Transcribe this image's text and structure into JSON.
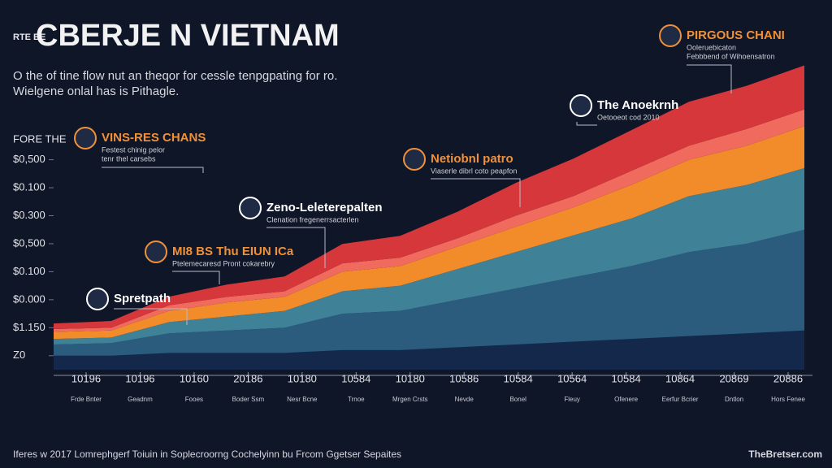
{
  "chart_data": {
    "type": "stacked-area",
    "logo": "RTE BE",
    "title": "CBERJE N VIETNAM",
    "subtitle": [
      "O the of tine flow nut an theqor for cessle tenpgpating for ro.",
      "Wielgene onlal has is Pithagle."
    ],
    "ylabel": "FORE THE",
    "categories": [
      "10196",
      "10196",
      "10160",
      "20186",
      "10180",
      "10584",
      "10180",
      "10586",
      "10584",
      "10564",
      "10584",
      "10864",
      "20869",
      "20886"
    ],
    "x_notes": [
      "Frde Bnter",
      "Geadnm",
      "Fooes",
      "Boder Ssm",
      "Nesr Bcne",
      "Trnoe",
      "Mrgen Crsts",
      "Nevde",
      "Bonel",
      "Fleuy",
      "Ofenere",
      "Eerfur Bcrier",
      "Dntlon",
      "Hors Fenee"
    ],
    "ylim": [
      0,
      11
    ],
    "yticks": [
      {
        "value": 0.5,
        "label": "Z0"
      },
      {
        "value": 1.5,
        "label": "$1.150"
      },
      {
        "value": 2.5,
        "label": "$0.000"
      },
      {
        "value": 3.5,
        "label": "$0.100"
      },
      {
        "value": 4.5,
        "label": "$0,500"
      },
      {
        "value": 5.5,
        "label": "$0.300"
      },
      {
        "value": 6.5,
        "label": "$0.100"
      },
      {
        "value": 7.5,
        "label": "$0,500"
      }
    ],
    "series": [
      {
        "color": "#13284a",
        "values": [
          0.5,
          0.5,
          0.6,
          0.6,
          0.6,
          0.7,
          0.7,
          0.8,
          0.9,
          1.0,
          1.1,
          1.2,
          1.3,
          1.4
        ]
      },
      {
        "color": "#2b5c7e",
        "values": [
          0.4,
          0.45,
          0.7,
          0.8,
          0.9,
          1.3,
          1.4,
          1.7,
          2.0,
          2.3,
          2.6,
          3.0,
          3.2,
          3.6
        ]
      },
      {
        "color": "#3f8197",
        "values": [
          0.2,
          0.2,
          0.4,
          0.5,
          0.6,
          0.8,
          0.9,
          1.1,
          1.3,
          1.5,
          1.7,
          2.0,
          2.1,
          2.2
        ]
      },
      {
        "color": "#f28c2a",
        "values": [
          0.25,
          0.25,
          0.4,
          0.5,
          0.5,
          0.7,
          0.7,
          0.8,
          0.9,
          1.0,
          1.2,
          1.3,
          1.4,
          1.5
        ]
      },
      {
        "color": "#f06a5e",
        "values": [
          0.1,
          0.1,
          0.2,
          0.2,
          0.2,
          0.3,
          0.3,
          0.3,
          0.4,
          0.4,
          0.5,
          0.5,
          0.6,
          0.6
        ]
      },
      {
        "color": "#d6373a",
        "values": [
          0.2,
          0.24,
          0.31,
          0.44,
          0.53,
          0.69,
          0.78,
          0.95,
          1.17,
          1.34,
          1.45,
          1.57,
          1.54,
          1.57
        ]
      }
    ],
    "annotations": [
      {
        "title": "VINS-RES CHANS",
        "text": [
          "Festest chinig pelor",
          "tenr thel carsebs"
        ],
        "color": "#f0913a"
      },
      {
        "title": "MI8 BS Thu EIUN ICa",
        "text": [
          "Ptelemecaresd Pront cokarebry"
        ],
        "color": "#f0913a"
      },
      {
        "title": "Spretpath",
        "text": [],
        "color": "#ffffff"
      },
      {
        "title": "Zeno-Leleterepalten",
        "text": [
          "Clenation fregenerrsacterlen"
        ],
        "color": "#ffffff"
      },
      {
        "title": "Netiobnl patro",
        "text": [
          "Viaserle dibrl coto peapfon"
        ],
        "color": "#f0913a"
      },
      {
        "title": "The Anoekrnh",
        "text": [
          "Oetooeot cod 2010"
        ],
        "color": "#ffffff"
      },
      {
        "title": "PIRGOUS CHANI",
        "text": [
          "Ooleruebicaton",
          "Febbbend of Wihoensatron"
        ],
        "color": "#f0913a"
      }
    ],
    "footer": "Iferes w 2017 Lomrephgerf Toiuin in Soplecroorng Cochelyinn bu Frcom Ggetser Sepaites",
    "source": "TheBretser.com"
  }
}
